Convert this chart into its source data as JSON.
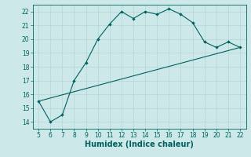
{
  "title": "",
  "xlabel": "Humidex (Indice chaleur)",
  "bg_color": "#cce8e8",
  "grid_color": "#b8d8d8",
  "line_color": "#006060",
  "curve1_x": [
    5,
    6,
    7,
    8,
    9,
    10,
    11,
    12,
    13,
    14,
    15,
    16,
    17,
    18,
    19,
    20,
    21,
    22
  ],
  "curve1_y": [
    15.5,
    14.0,
    14.5,
    17.0,
    18.3,
    20.0,
    21.1,
    22.0,
    21.5,
    22.0,
    21.8,
    22.2,
    21.8,
    21.2,
    19.8,
    19.4,
    19.8,
    19.4
  ],
  "curve2_x": [
    5,
    22
  ],
  "curve2_y": [
    15.5,
    19.4
  ],
  "xlim": [
    4.5,
    22.5
  ],
  "ylim": [
    13.5,
    22.5
  ],
  "xticks": [
    5,
    6,
    7,
    8,
    9,
    10,
    11,
    12,
    13,
    14,
    15,
    16,
    17,
    18,
    19,
    20,
    21,
    22
  ],
  "yticks": [
    14,
    15,
    16,
    17,
    18,
    19,
    20,
    21,
    22
  ],
  "tick_fontsize": 5.5,
  "xlabel_fontsize": 7
}
